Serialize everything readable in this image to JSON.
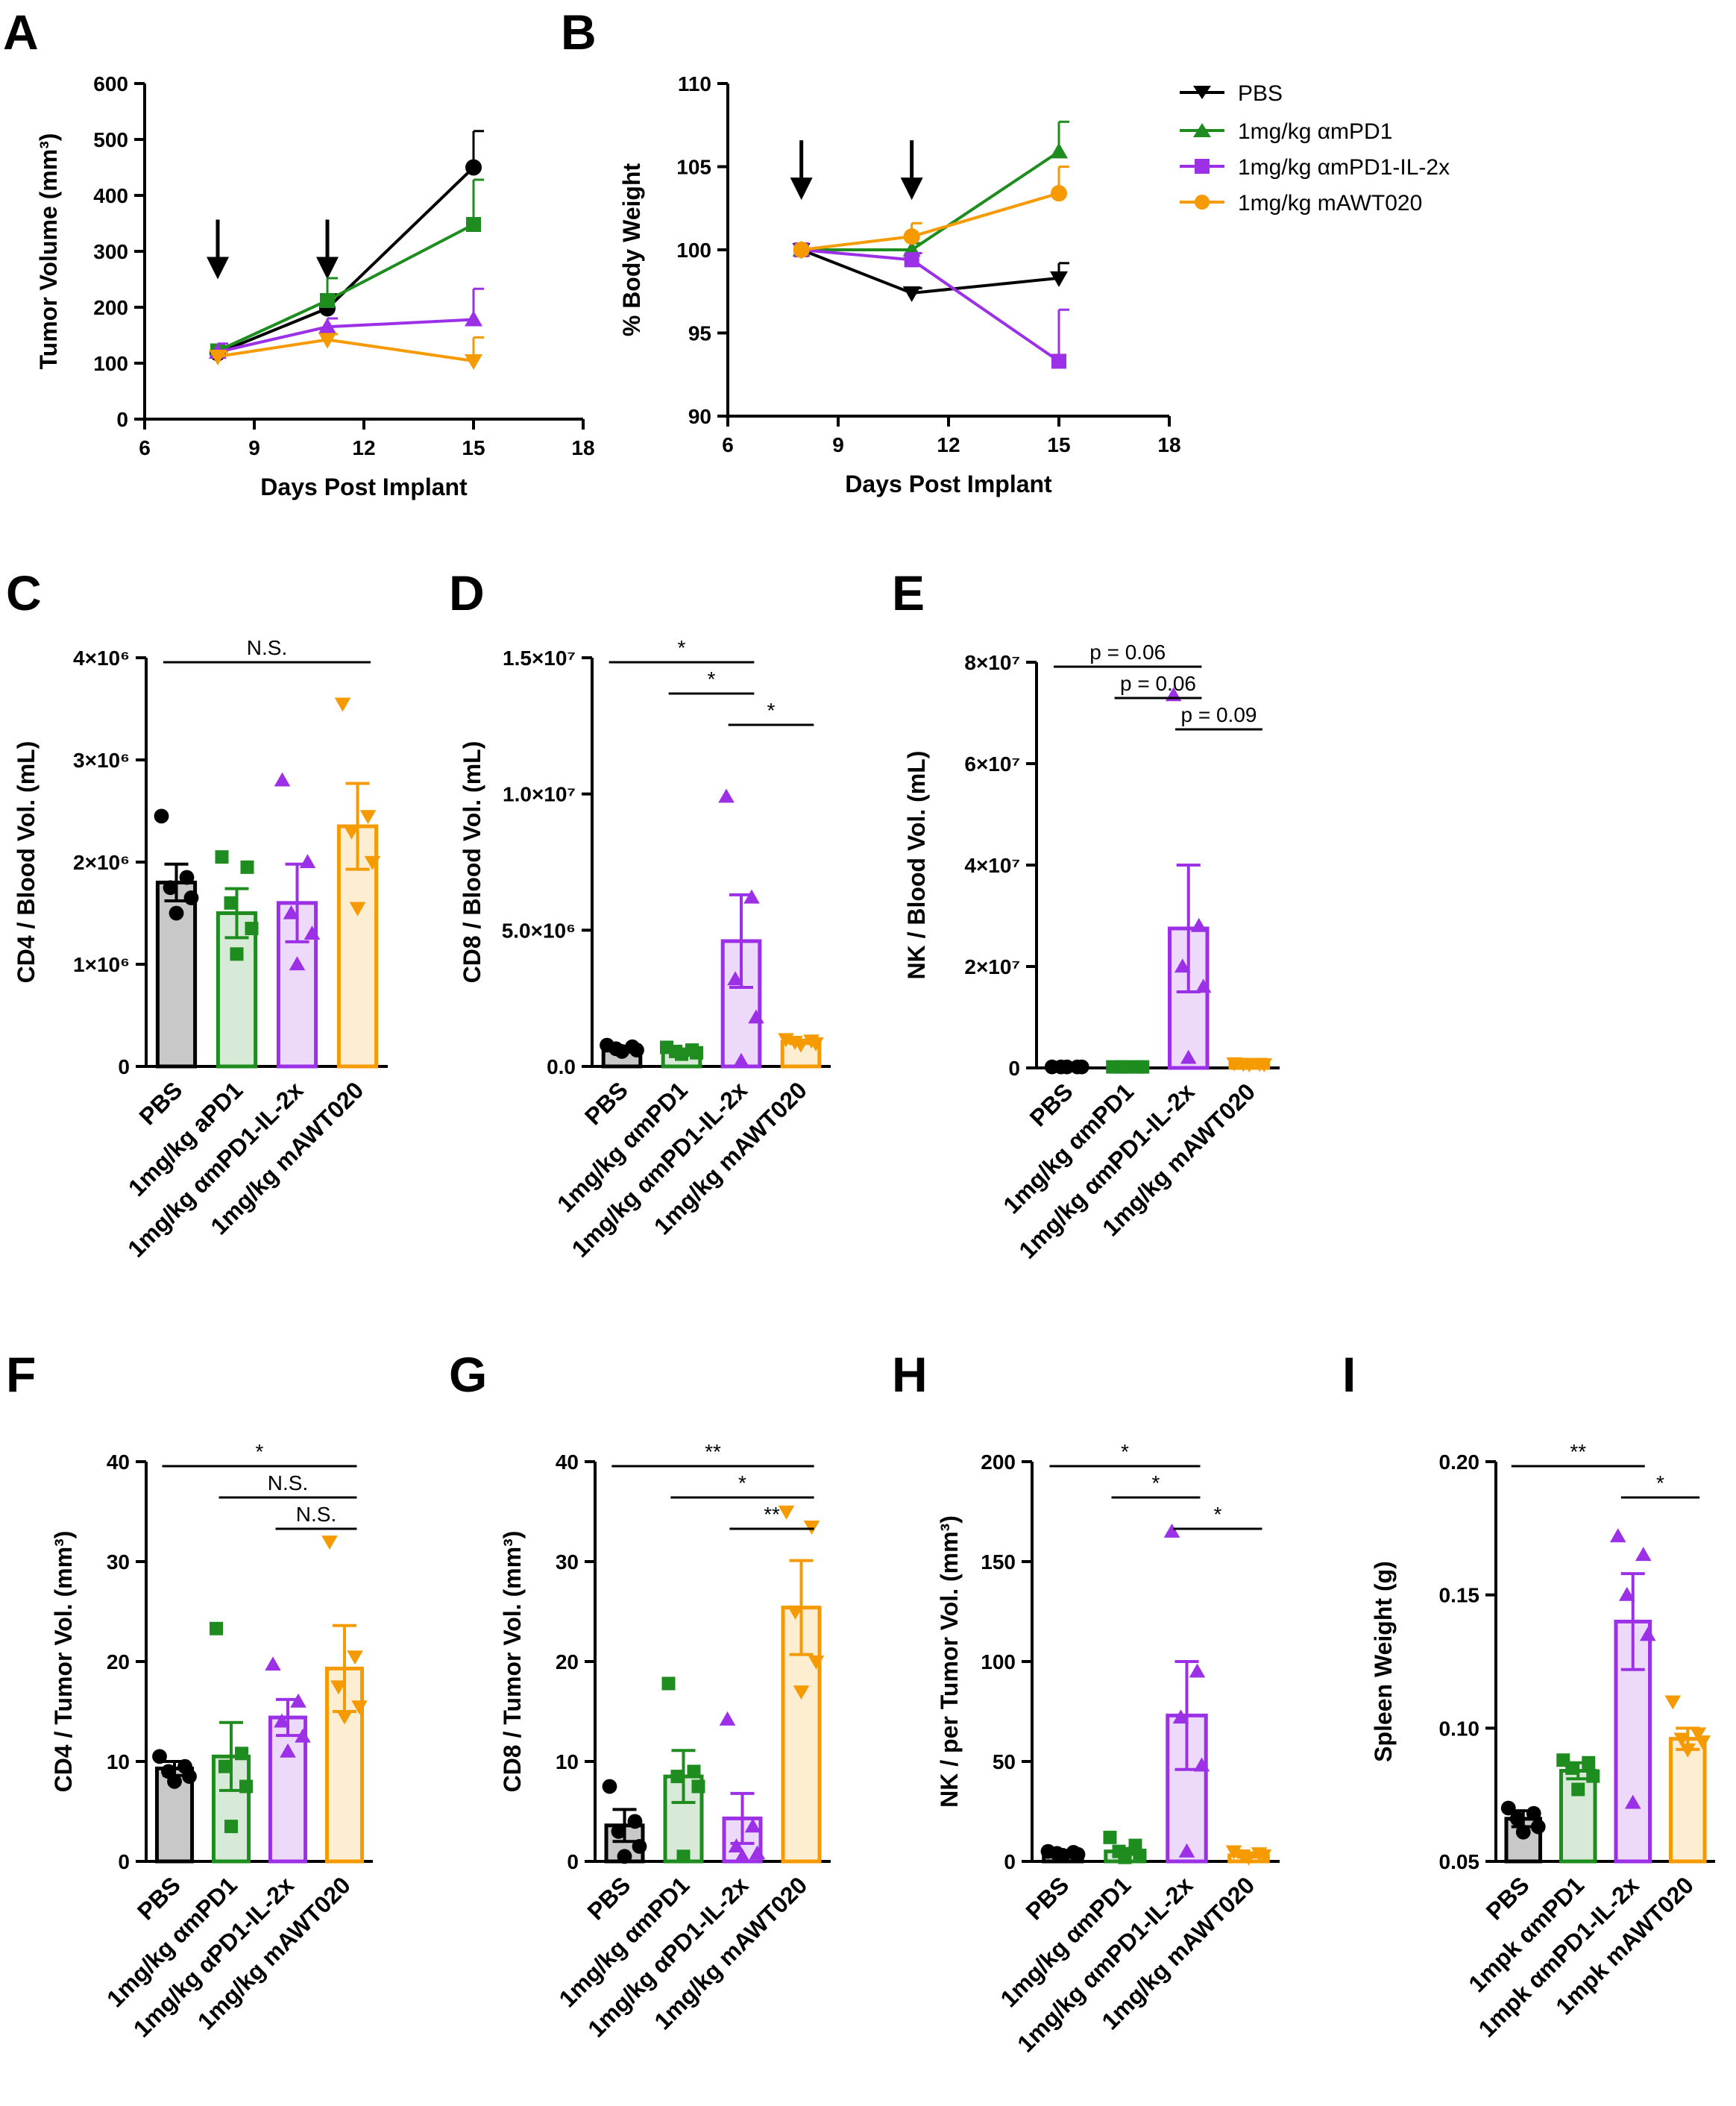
{
  "legend": {
    "entries": [
      {
        "label": "PBS",
        "color": "#000000",
        "marker": "tri-down"
      },
      {
        "label": "1mg/kg αmPD1",
        "color": "#1e8c1e",
        "marker": "tri-up"
      },
      {
        "label": "1mg/kg αmPD1-IL-2x",
        "color": "#9b30e6",
        "marker": "square"
      },
      {
        "label": "1mg/kg mAWT020",
        "color": "#f59a00",
        "marker": "circle"
      }
    ]
  },
  "chart_data": [
    {
      "panel": "A",
      "type": "line",
      "xlabel": "Days Post Implant",
      "ylabel": "Tumor Volume (mm³)",
      "xlim": [
        6,
        18
      ],
      "xticks": [
        "6",
        "9",
        "12",
        "15",
        "18"
      ],
      "ylim": [
        0,
        600
      ],
      "yticks": [
        "0",
        "100",
        "200",
        "300",
        "400",
        "500",
        "600"
      ],
      "x": [
        8,
        11,
        15
      ],
      "arrows_at_day": [
        8,
        11
      ],
      "series": [
        {
          "name": "PBS",
          "color": "#000000",
          "marker": "circle",
          "values": [
            118,
            198,
            450
          ],
          "err": [
            8,
            25,
            65
          ]
        },
        {
          "name": "1mg/kg αmPD1",
          "color": "#1e8c1e",
          "marker": "square",
          "values": [
            122,
            212,
            348
          ],
          "err": [
            8,
            40,
            80
          ]
        },
        {
          "name": "1mg/kg αmPD1-IL-2x",
          "color": "#9b30e6",
          "marker": "tri-up",
          "values": [
            120,
            165,
            178
          ],
          "err": [
            15,
            15,
            55
          ]
        },
        {
          "name": "1mg/kg mAWT020",
          "color": "#f59a00",
          "marker": "tri-down",
          "values": [
            112,
            142,
            104
          ],
          "err": [
            8,
            10,
            42
          ]
        }
      ]
    },
    {
      "panel": "B",
      "type": "line",
      "xlabel": "Days Post Implant",
      "ylabel": "% Body Weight",
      "xlim": [
        6,
        18
      ],
      "xticks": [
        "6",
        "9",
        "12",
        "15",
        "18"
      ],
      "ylim": [
        90,
        110
      ],
      "yticks": [
        "90",
        "95",
        "100",
        "105",
        "110"
      ],
      "x": [
        8,
        11,
        15
      ],
      "arrows_at_day": [
        8,
        11
      ],
      "series": [
        {
          "name": "PBS",
          "color": "#000000",
          "marker": "tri-down",
          "values": [
            100,
            97.4,
            98.3
          ],
          "err": [
            0,
            0.3,
            0.9
          ]
        },
        {
          "name": "1mg/kg αmPD1",
          "color": "#1e8c1e",
          "marker": "tri-up",
          "values": [
            100,
            100,
            105.9
          ],
          "err": [
            0,
            0.4,
            1.8
          ]
        },
        {
          "name": "1mg/kg αmPD1-IL-2x",
          "color": "#9b30e6",
          "marker": "square",
          "values": [
            100,
            99.4,
            93.3
          ],
          "err": [
            0,
            0.4,
            3.1
          ]
        },
        {
          "name": "1mg/kg mAWT020",
          "color": "#f59a00",
          "marker": "circle",
          "values": [
            100,
            100.8,
            103.4
          ],
          "err": [
            0,
            0.8,
            1.6
          ]
        }
      ]
    },
    {
      "panel": "C",
      "type": "bar",
      "ylabel": "CD4 / Blood Vol. (mL)",
      "ylim": [
        0,
        4000000
      ],
      "yticks": [
        "0",
        "1×10⁶",
        "2×10⁶",
        "3×10⁶",
        "4×10⁶"
      ],
      "categories": [
        "PBS",
        "1mg/kg aPD1",
        "1mg/kg αmPD1-IL-2x",
        "1mg/kg mAWT020"
      ],
      "markers": [
        "circle",
        "square",
        "tri-up",
        "tri-down"
      ],
      "values": [
        1800000,
        1500000,
        1600000,
        2350000
      ],
      "err": [
        180000,
        240000,
        380000,
        420000
      ],
      "points": [
        [
          2450000,
          1850000,
          1750000,
          1650000,
          1500000
        ],
        [
          2050000,
          1950000,
          1600000,
          1350000,
          1100000
        ],
        [
          2800000,
          2000000,
          1500000,
          1300000,
          1000000
        ],
        [
          3550000,
          2450000,
          2300000,
          2000000,
          1550000
        ]
      ],
      "significance": [
        {
          "from": 0,
          "to": 3,
          "label": "N.S."
        }
      ]
    },
    {
      "panel": "D",
      "type": "bar",
      "ylabel": "CD8 / Blood Vol. (mL)",
      "ylim": [
        0,
        15000000
      ],
      "yticks": [
        "0.0",
        "5.0×10⁶",
        "1.0×10⁷",
        "1.5×10⁷"
      ],
      "categories": [
        "PBS",
        "1mg/kg αmPD1",
        "1mg/kg αmPD1-IL-2x",
        "1mg/kg mAWT020"
      ],
      "markers": [
        "circle",
        "square",
        "tri-up",
        "tri-down"
      ],
      "values": [
        650000,
        550000,
        4600000,
        900000
      ],
      "err": [
        60000,
        60000,
        1700000,
        60000
      ],
      "points": [
        [
          780000,
          720000,
          650000,
          600000,
          550000
        ],
        [
          700000,
          600000,
          550000,
          500000,
          450000
        ],
        [
          9900000,
          6200000,
          3200000,
          1800000,
          200000
        ],
        [
          1000000,
          950000,
          900000,
          850000,
          800000
        ]
      ],
      "significance": [
        {
          "from": 0,
          "to": 2,
          "label": "*"
        },
        {
          "from": 1,
          "to": 2,
          "label": "*"
        },
        {
          "from": 2,
          "to": 3,
          "label": "*"
        }
      ]
    },
    {
      "panel": "E",
      "type": "bar",
      "ylabel": "NK / Blood Vol. (mL)",
      "ylim": [
        0,
        80000000
      ],
      "yticks": [
        "0",
        "2×10⁷",
        "4×10⁷",
        "6×10⁷",
        "8×10⁷"
      ],
      "categories": [
        "PBS",
        "1mg/kg αmPD1",
        "1mg/kg αmPD1-IL-2x",
        "1mg/kg mAWT020"
      ],
      "markers": [
        "circle",
        "square",
        "tri-up",
        "tri-down"
      ],
      "values": [
        200000,
        200000,
        27500000,
        800000
      ],
      "err": [
        50000,
        50000,
        12500000,
        100000
      ],
      "points": [
        [
          200000,
          200000,
          200000,
          200000,
          200000
        ],
        [
          200000,
          200000,
          200000,
          200000,
          200000
        ],
        [
          73500000,
          28000000,
          20000000,
          16000000,
          2000000
        ],
        [
          900000,
          800000,
          800000,
          700000,
          700000
        ]
      ],
      "significance": [
        {
          "from": 0,
          "to": 2,
          "label": "p = 0.06"
        },
        {
          "from": 1,
          "to": 2,
          "label": "p = 0.06"
        },
        {
          "from": 2,
          "to": 3,
          "label": "p = 0.09"
        }
      ]
    },
    {
      "panel": "F",
      "type": "bar",
      "ylabel": "CD4 / Tumor Vol. (mm³)",
      "ylim": [
        0,
        40
      ],
      "yticks": [
        "0",
        "10",
        "20",
        "30",
        "40"
      ],
      "categories": [
        "PBS",
        "1mg/kg αmPD1",
        "1mg/kg αPD1-IL-2x",
        "1mg/kg mAWT020"
      ],
      "markers": [
        "circle",
        "square",
        "tri-up",
        "tri-down"
      ],
      "values": [
        9.3,
        10.5,
        14.4,
        19.3
      ],
      "err": [
        0.7,
        3.4,
        1.8,
        4.3
      ],
      "points": [
        [
          10.5,
          9.5,
          9.0,
          8.5,
          8.0
        ],
        [
          23.3,
          10.8,
          9.5,
          7.5,
          3.5
        ],
        [
          19.7,
          16.0,
          14.0,
          12.5,
          11.0
        ],
        [
          32.0,
          20.5,
          17.5,
          15.5,
          14.5
        ]
      ],
      "significance": [
        {
          "from": 0,
          "to": 3,
          "label": "*"
        },
        {
          "from": 1,
          "to": 3,
          "label": "N.S."
        },
        {
          "from": 2,
          "to": 3,
          "label": "N.S."
        }
      ]
    },
    {
      "panel": "G",
      "type": "bar",
      "ylabel": "CD8 / Tumor Vol. (mm³)",
      "ylim": [
        0,
        40
      ],
      "yticks": [
        "0",
        "10",
        "20",
        "30",
        "40"
      ],
      "categories": [
        "PBS",
        "1mg/kg αmPD1",
        "1mg/kg αPD1-IL-2x",
        "1mg/kg mAWT020"
      ],
      "markers": [
        "circle",
        "square",
        "tri-up",
        "tri-down"
      ],
      "values": [
        3.6,
        8.5,
        4.3,
        25.4
      ],
      "err": [
        1.6,
        2.6,
        2.5,
        4.7
      ],
      "points": [
        [
          7.5,
          4.0,
          3.0,
          1.5,
          0.5
        ],
        [
          17.8,
          9.0,
          8.5,
          7.5,
          0.5
        ],
        [
          14.2,
          3.5,
          1.5,
          0.8,
          0.5
        ],
        [
          35.0,
          33.5,
          25.0,
          20.0,
          17.0
        ]
      ],
      "significance": [
        {
          "from": 0,
          "to": 3,
          "label": "**"
        },
        {
          "from": 1,
          "to": 3,
          "label": "*"
        },
        {
          "from": 2,
          "to": 3,
          "label": "**"
        }
      ]
    },
    {
      "panel": "H",
      "type": "bar",
      "ylabel": "NK / per Tumor Vol. (mm³)",
      "ylim": [
        0,
        200
      ],
      "yticks": [
        "0",
        "50",
        "100",
        "150",
        "200"
      ],
      "categories": [
        "PBS",
        "1mg/kg αmPD1",
        "1mg/kg αmPD1-IL-2x",
        "1mg/kg mAWT020"
      ],
      "markers": [
        "circle",
        "square",
        "tri-up",
        "tri-down"
      ],
      "values": [
        4,
        5,
        73,
        3
      ],
      "err": [
        0.5,
        1.5,
        27,
        0.8
      ],
      "points": [
        [
          5,
          4.5,
          4,
          3.5,
          3
        ],
        [
          12,
          8,
          5,
          3,
          2
        ],
        [
          165,
          95,
          72,
          48,
          5
        ],
        [
          5,
          4,
          3,
          3,
          2
        ]
      ],
      "significance": [
        {
          "from": 0,
          "to": 2,
          "label": "*"
        },
        {
          "from": 1,
          "to": 2,
          "label": "*"
        },
        {
          "from": 2,
          "to": 3,
          "label": "*"
        }
      ]
    },
    {
      "panel": "I",
      "type": "bar",
      "ylabel": "Spleen Weight (g)",
      "ylim": [
        0.05,
        0.2
      ],
      "yticks": [
        "0.05",
        "0.10",
        "0.15",
        "0.20"
      ],
      "categories": [
        "PBS",
        "1mpk αmPD1",
        "1mpk αmPD1-IL-2x",
        "1mpk mAWT020"
      ],
      "markers": [
        "circle",
        "square",
        "tri-up",
        "tri-down"
      ],
      "values": [
        0.066,
        0.084,
        0.14,
        0.096
      ],
      "err": [
        0.003,
        0.003,
        0.018,
        0.004
      ],
      "points": [
        [
          0.07,
          0.068,
          0.066,
          0.063,
          0.061
        ],
        [
          0.088,
          0.087,
          0.085,
          0.082,
          0.077
        ],
        [
          0.172,
          0.165,
          0.15,
          0.135,
          0.072
        ],
        [
          0.11,
          0.098,
          0.096,
          0.095,
          0.092
        ]
      ],
      "significance": [
        {
          "from": 0,
          "to": 2,
          "label": "**"
        },
        {
          "from": 2,
          "to": 3,
          "label": "*"
        }
      ]
    }
  ]
}
